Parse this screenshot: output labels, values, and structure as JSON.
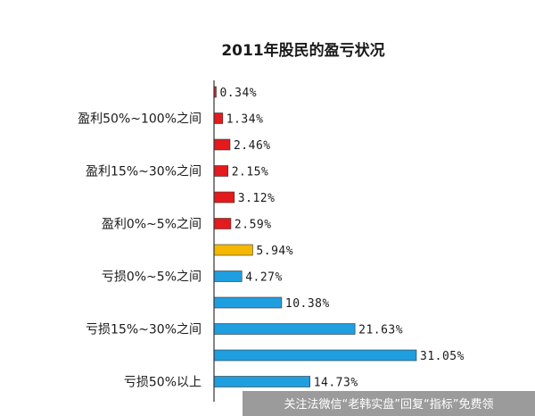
{
  "chart_data": {
    "type": "bar",
    "orientation": "horizontal",
    "title": "2011年股民的盈亏状况",
    "categories": [
      "",
      "盈利50%~100%之间",
      "",
      "盈利15%~30%之间",
      "",
      "盈利0%~5%之间",
      "",
      "亏损0%~5%之间",
      "",
      "亏损15%~30%之间",
      "",
      "亏损50%以上"
    ],
    "values": [
      0.34,
      1.34,
      2.46,
      2.15,
      3.12,
      2.59,
      5.94,
      4.27,
      10.38,
      21.63,
      31.05,
      14.73
    ],
    "value_labels": [
      "0.34%",
      "1.34%",
      "2.46%",
      "2.15%",
      "3.12%",
      "2.59%",
      "5.94%",
      "4.27%",
      "10.38%",
      "21.63%",
      "31.05%",
      "14.73%"
    ],
    "colors": [
      "#e41a1c",
      "#e41a1c",
      "#e41a1c",
      "#e41a1c",
      "#e41a1c",
      "#e41a1c",
      "#f5b800",
      "#1f9ee0",
      "#1f9ee0",
      "#1f9ee0",
      "#1f9ee0",
      "#1f9ee0"
    ],
    "legend": "none",
    "grid": false
  },
  "watermark": {
    "text": "关注法微信“老韩实盘”回复“指标”免费领"
  }
}
